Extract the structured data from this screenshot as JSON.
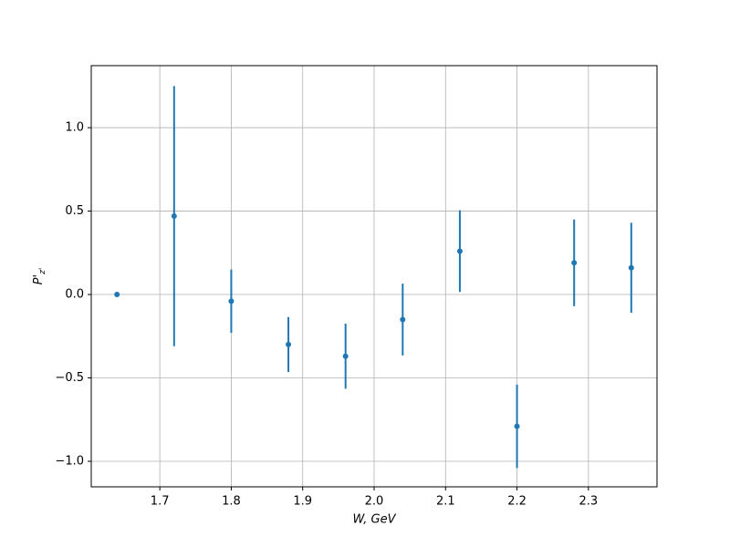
{
  "chart_data": {
    "type": "errorbar",
    "xlabel": "W, GeV",
    "ylabel": {
      "main": "P'",
      "sub": "z'"
    },
    "x": [
      1.64,
      1.72,
      1.8,
      1.88,
      1.96,
      2.04,
      2.12,
      2.2,
      2.28,
      2.36
    ],
    "values": [
      0.0,
      0.47,
      -0.04,
      -0.3,
      -0.37,
      -0.15,
      0.26,
      -0.79,
      0.19,
      0.16
    ],
    "errors": [
      0.0,
      0.78,
      0.19,
      0.165,
      0.195,
      0.215,
      0.245,
      0.25,
      0.26,
      0.27
    ],
    "color": "#1f77b4",
    "xlim": [
      1.604,
      2.396
    ],
    "ylim": [
      -1.153,
      1.372
    ],
    "xticks": [
      1.7,
      1.8,
      1.9,
      {
        "value": 2.0,
        "label": "2.0"
      },
      2.1,
      2.2,
      2.3
    ],
    "yticks": [
      {
        "value": -1.0,
        "label": "−1.0"
      },
      {
        "value": -0.5,
        "label": "−0.5"
      },
      {
        "value": 0.0,
        "label": "0.0"
      },
      0.5,
      {
        "value": 1.0,
        "label": "1.0"
      }
    ],
    "grid": true
  }
}
